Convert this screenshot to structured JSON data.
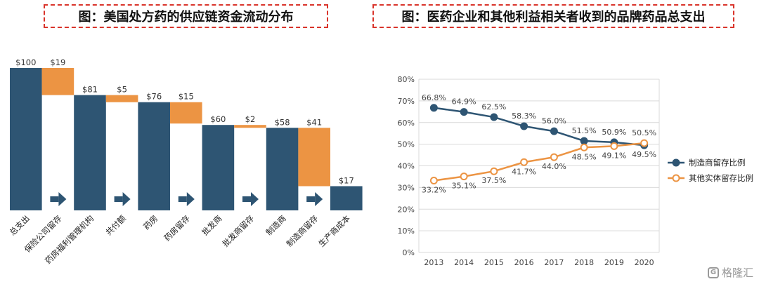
{
  "left_title": "图：美国处方药的供应链资金流动分布",
  "right_title": "图：医药企业和其他利益相关者收到的品牌药品总支出",
  "watermark": {
    "text": "格隆汇",
    "logo_glyph": "G"
  },
  "colors": {
    "navy": "#2e5573",
    "orange": "#ec9443",
    "gray_line": "#d9d9d9",
    "accent_red": "#d9342b"
  },
  "chart_data": [
    {
      "type": "bar",
      "subtype": "waterfall",
      "title": "图：美国处方药的供应链资金流动分布",
      "categories": [
        "总支出",
        "保险公司留存",
        "药房福利管理机构",
        "共付额",
        "药房",
        "药房留存",
        "批发商",
        "批发商留存",
        "制造商",
        "制造商留存",
        "生产商成本"
      ],
      "values": [
        100,
        19,
        81,
        5,
        76,
        15,
        60,
        2,
        58,
        41,
        17
      ],
      "value_labels": [
        "$100",
        "$19",
        "$81",
        "$5",
        "$76",
        "$15",
        "$60",
        "$2",
        "$58",
        "$41",
        "$17"
      ],
      "bar_kind": [
        "total",
        "retained",
        "total",
        "retained",
        "total",
        "retained",
        "total",
        "retained",
        "total",
        "retained",
        "total"
      ],
      "bar_colors": [
        "#2e5573",
        "#ec9443",
        "#2e5573",
        "#ec9443",
        "#2e5573",
        "#ec9443",
        "#2e5573",
        "#ec9443",
        "#2e5573",
        "#ec9443",
        "#2e5573"
      ],
      "arrow_icon": "right-arrow-icon",
      "ylim": [
        0,
        100
      ]
    },
    {
      "type": "line",
      "title": "图：医药企业和其他利益相关者收到的品牌药品总支出",
      "x": [
        "2013",
        "2014",
        "2015",
        "2016",
        "2017",
        "2018",
        "2019",
        "2020"
      ],
      "yticks": [
        "0%",
        "10%",
        "20%",
        "30%",
        "40%",
        "50%",
        "60%",
        "70%",
        "80%"
      ],
      "ylim": [
        0,
        80
      ],
      "grid": true,
      "legend": "right",
      "series": [
        {
          "name": "制造商留存比例",
          "color": "#2e5573",
          "marker": "filled-circle",
          "values": [
            66.8,
            64.9,
            62.5,
            58.3,
            56.0,
            51.5,
            50.9,
            49.5
          ],
          "labels": [
            "66.8%",
            "64.9%",
            "62.5%",
            "58.3%",
            "56.0%",
            "51.5%",
            "50.9%",
            "49.5%"
          ]
        },
        {
          "name": "其他实体留存比例",
          "color": "#ec9443",
          "marker": "hollow-circle",
          "values": [
            33.2,
            35.1,
            37.5,
            41.7,
            44.0,
            48.5,
            49.1,
            50.5
          ],
          "labels": [
            "33.2%",
            "35.1%",
            "37.5%",
            "41.7%",
            "44.0%",
            "48.5%",
            "49.1%",
            "50.5%"
          ]
        }
      ]
    }
  ]
}
